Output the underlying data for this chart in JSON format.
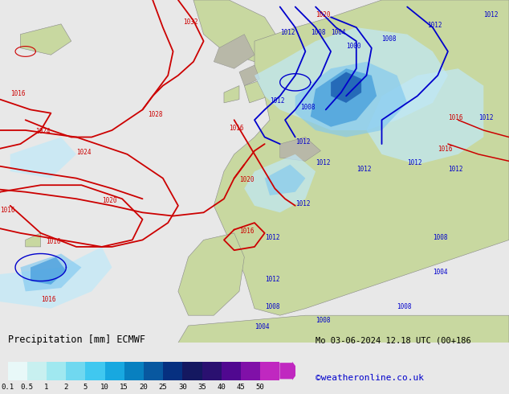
{
  "title_left": "Precipitation [mm] ECMWF",
  "title_right": "Mo 03-06-2024 12.18 UTC (00+186",
  "credit": "©weatheronline.co.uk",
  "colorbar_labels": [
    "0.1",
    "0.5",
    "1",
    "2",
    "5",
    "10",
    "15",
    "20",
    "25",
    "30",
    "35",
    "40",
    "45",
    "50"
  ],
  "colorbar_colors": [
    "#e8f8f8",
    "#c8f0f0",
    "#a0e8f0",
    "#70d8f0",
    "#40c8f0",
    "#18a8e0",
    "#0880c0",
    "#0858a0",
    "#063080",
    "#141860",
    "#2a1070",
    "#500890",
    "#8010a8",
    "#c028c0"
  ],
  "bg_color": "#e8e8e8",
  "ocean_color": "#d8e8f0",
  "land_color": "#c8d8a0",
  "mountain_color": "#b8b8a8",
  "precip_light_color": "#c0e8f8",
  "precip_mid_color": "#80c8f0",
  "precip_dark_color": "#3090d8",
  "precip_deep_color": "#1050a8",
  "text_color_black": "#000000",
  "red_contour_color": "#cc0000",
  "blue_contour_color": "#0000cc",
  "credit_color": "#0000cc"
}
